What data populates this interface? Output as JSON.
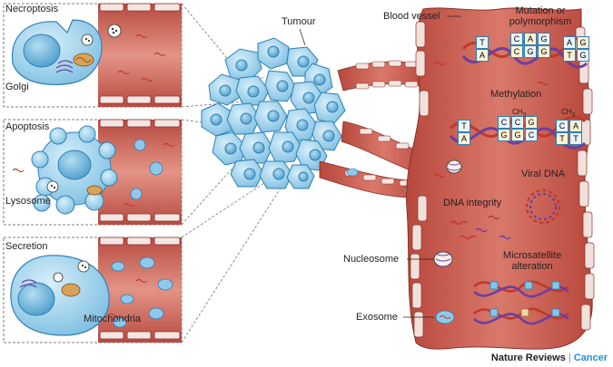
{
  "labels": {
    "necroptosis": "Necroptosis",
    "golgi": "Golgi",
    "apoptosis": "Apoptosis",
    "lysosome": "Lysosome",
    "secretion": "Secretion",
    "mitochondria": "Mitochondria",
    "tumour": "Tumour",
    "blood_vessel": "Blood vessel",
    "mutation_line1": "Mutation or",
    "mutation_line2": "polymorphism",
    "methylation": "Methylation",
    "ch3": "CH",
    "ch3_sub": "3",
    "viral_dna": "Viral DNA",
    "dna_integrity": "DNA integrity",
    "nucleosome": "Nucleosome",
    "microsatellite_line1": "Microsatellite",
    "microsatellite_line2": "alteration",
    "exosome": "Exosome"
  },
  "bases": {
    "mutation_top": [
      "T",
      "C",
      "A",
      "A"
    ],
    "mutation_bottom": [
      "A",
      "G",
      "G",
      "T"
    ],
    "mutation_extra_top": [
      "G",
      "G"
    ],
    "mutation_extra_bottom": [
      "C",
      "C"
    ],
    "methylation_top": [
      "T",
      "C",
      "C",
      "G",
      "C"
    ],
    "methylation_bottom": [
      "A",
      "G",
      "G",
      "C",
      "T"
    ],
    "methylation_extra_top": [
      "G",
      "A"
    ],
    "methylation_extra_bottom": [
      "C",
      "T"
    ]
  },
  "credit": {
    "journal": "Nature Reviews",
    "separator": "|",
    "section": "Cancer"
  },
  "colors": {
    "cell_fill": "#8fcbe8",
    "cell_stroke": "#2f7fb3",
    "vessel_fill": "#c9564a",
    "vessel_light": "#e89a8a",
    "dna_red": "#c0392b",
    "dna_purple": "#6b3fa0",
    "accent": "#2a8fd8"
  }
}
